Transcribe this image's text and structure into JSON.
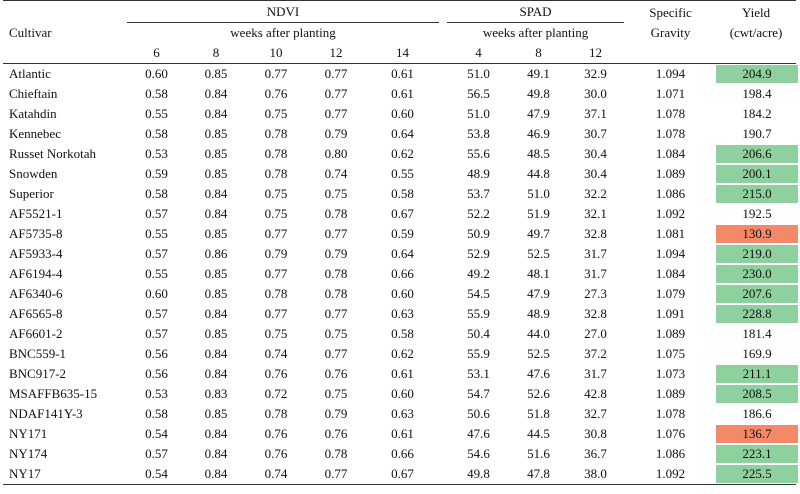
{
  "headers": {
    "cultivar": "Cultivar",
    "ndvi": "NDVI",
    "spad": "SPAD",
    "weeks_after_planting": "weeks after planting",
    "specific_gravity_line1": "Specific",
    "specific_gravity_line2": "Gravity",
    "yield_line1": "Yield",
    "yield_line2": "(cwt/acre)",
    "ndvi_weeks": [
      "6",
      "8",
      "10",
      "12",
      "14"
    ],
    "spad_weeks": [
      "4",
      "8",
      "12"
    ]
  },
  "colors": {
    "good": "#8fd19e",
    "bad": "#f4896a"
  },
  "rows": [
    {
      "cultivar": "Atlantic",
      "ndvi": [
        "0.60",
        "0.85",
        "0.77",
        "0.77",
        "0.61"
      ],
      "spad": [
        "51.0",
        "49.1",
        "32.9"
      ],
      "sg": "1.094",
      "yield": "204.9",
      "hl": "good"
    },
    {
      "cultivar": "Chieftain",
      "ndvi": [
        "0.58",
        "0.84",
        "0.76",
        "0.77",
        "0.61"
      ],
      "spad": [
        "56.5",
        "49.8",
        "30.0"
      ],
      "sg": "1.071",
      "yield": "198.4",
      "hl": ""
    },
    {
      "cultivar": "Katahdin",
      "ndvi": [
        "0.55",
        "0.84",
        "0.75",
        "0.77",
        "0.60"
      ],
      "spad": [
        "51.0",
        "47.9",
        "37.1"
      ],
      "sg": "1.078",
      "yield": "184.2",
      "hl": ""
    },
    {
      "cultivar": "Kennebec",
      "ndvi": [
        "0.58",
        "0.85",
        "0.78",
        "0.79",
        "0.64"
      ],
      "spad": [
        "53.8",
        "46.9",
        "30.7"
      ],
      "sg": "1.078",
      "yield": "190.7",
      "hl": ""
    },
    {
      "cultivar": "Russet Norkotah",
      "ndvi": [
        "0.53",
        "0.85",
        "0.78",
        "0.80",
        "0.62"
      ],
      "spad": [
        "55.6",
        "48.5",
        "30.4"
      ],
      "sg": "1.084",
      "yield": "206.6",
      "hl": "good"
    },
    {
      "cultivar": "Snowden",
      "ndvi": [
        "0.59",
        "0.85",
        "0.78",
        "0.74",
        "0.55"
      ],
      "spad": [
        "48.9",
        "44.8",
        "30.4"
      ],
      "sg": "1.089",
      "yield": "200.1",
      "hl": "good"
    },
    {
      "cultivar": "Superior",
      "ndvi": [
        "0.58",
        "0.84",
        "0.75",
        "0.75",
        "0.58"
      ],
      "spad": [
        "53.7",
        "51.0",
        "32.2"
      ],
      "sg": "1.086",
      "yield": "215.0",
      "hl": "good"
    },
    {
      "cultivar": "AF5521-1",
      "ndvi": [
        "0.57",
        "0.84",
        "0.75",
        "0.78",
        "0.67"
      ],
      "spad": [
        "52.2",
        "51.9",
        "32.1"
      ],
      "sg": "1.092",
      "yield": "192.5",
      "hl": ""
    },
    {
      "cultivar": "AF5735-8",
      "ndvi": [
        "0.55",
        "0.85",
        "0.77",
        "0.77",
        "0.59"
      ],
      "spad": [
        "50.9",
        "49.7",
        "32.8"
      ],
      "sg": "1.081",
      "yield": "130.9",
      "hl": "bad"
    },
    {
      "cultivar": "AF5933-4",
      "ndvi": [
        "0.57",
        "0.86",
        "0.79",
        "0.79",
        "0.64"
      ],
      "spad": [
        "52.9",
        "52.5",
        "31.7"
      ],
      "sg": "1.094",
      "yield": "219.0",
      "hl": "good"
    },
    {
      "cultivar": "AF6194-4",
      "ndvi": [
        "0.55",
        "0.85",
        "0.77",
        "0.78",
        "0.66"
      ],
      "spad": [
        "49.2",
        "48.1",
        "31.7"
      ],
      "sg": "1.084",
      "yield": "230.0",
      "hl": "good"
    },
    {
      "cultivar": "AF6340-6",
      "ndvi": [
        "0.60",
        "0.85",
        "0.78",
        "0.78",
        "0.60"
      ],
      "spad": [
        "54.5",
        "47.9",
        "27.3"
      ],
      "sg": "1.079",
      "yield": "207.6",
      "hl": "good"
    },
    {
      "cultivar": "AF6565-8",
      "ndvi": [
        "0.57",
        "0.84",
        "0.77",
        "0.77",
        "0.63"
      ],
      "spad": [
        "55.9",
        "48.9",
        "32.8"
      ],
      "sg": "1.091",
      "yield": "228.8",
      "hl": "good"
    },
    {
      "cultivar": "AF6601-2",
      "ndvi": [
        "0.57",
        "0.85",
        "0.75",
        "0.75",
        "0.58"
      ],
      "spad": [
        "50.4",
        "44.0",
        "27.0"
      ],
      "sg": "1.089",
      "yield": "181.4",
      "hl": ""
    },
    {
      "cultivar": "BNC559-1",
      "ndvi": [
        "0.56",
        "0.84",
        "0.74",
        "0.77",
        "0.62"
      ],
      "spad": [
        "55.9",
        "52.5",
        "37.2"
      ],
      "sg": "1.075",
      "yield": "169.9",
      "hl": ""
    },
    {
      "cultivar": "BNC917-2",
      "ndvi": [
        "0.56",
        "0.84",
        "0.76",
        "0.76",
        "0.61"
      ],
      "spad": [
        "53.1",
        "47.6",
        "31.7"
      ],
      "sg": "1.073",
      "yield": "211.1",
      "hl": "good"
    },
    {
      "cultivar": "MSAFFB635-15",
      "ndvi": [
        "0.53",
        "0.83",
        "0.72",
        "0.75",
        "0.60"
      ],
      "spad": [
        "54.7",
        "52.6",
        "42.8"
      ],
      "sg": "1.089",
      "yield": "208.5",
      "hl": "good"
    },
    {
      "cultivar": "NDAF141Y-3",
      "ndvi": [
        "0.58",
        "0.85",
        "0.78",
        "0.79",
        "0.63"
      ],
      "spad": [
        "50.6",
        "51.8",
        "32.7"
      ],
      "sg": "1.078",
      "yield": "186.6",
      "hl": ""
    },
    {
      "cultivar": "NY171",
      "ndvi": [
        "0.54",
        "0.84",
        "0.76",
        "0.76",
        "0.61"
      ],
      "spad": [
        "47.6",
        "44.5",
        "30.8"
      ],
      "sg": "1.076",
      "yield": "136.7",
      "hl": "bad"
    },
    {
      "cultivar": "NY174",
      "ndvi": [
        "0.57",
        "0.84",
        "0.76",
        "0.78",
        "0.66"
      ],
      "spad": [
        "54.6",
        "51.6",
        "36.7"
      ],
      "sg": "1.086",
      "yield": "223.1",
      "hl": "good"
    },
    {
      "cultivar": "NY17",
      "ndvi": [
        "0.54",
        "0.84",
        "0.74",
        "0.77",
        "0.67"
      ],
      "spad": [
        "49.8",
        "47.8",
        "38.0"
      ],
      "sg": "1.092",
      "yield": "225.5",
      "hl": "good"
    }
  ]
}
